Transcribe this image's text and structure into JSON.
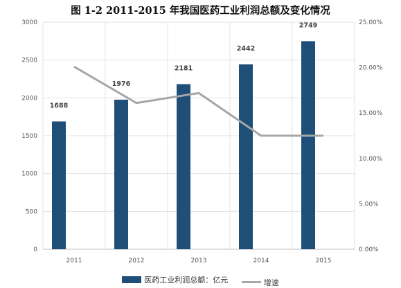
{
  "title": "图 1-2 2011-2015 年我国医药工业利润总额及变化情况",
  "chart_data": {
    "type": "bar",
    "categories": [
      "2011",
      "2012",
      "2013",
      "2014",
      "2015"
    ],
    "series": [
      {
        "name": "医药工业利润总额：亿元",
        "type": "bar",
        "axis": "left",
        "color": "#1f4e79",
        "values": [
          1688,
          1976,
          2181,
          2442,
          2749
        ]
      },
      {
        "name": "增速",
        "type": "line",
        "axis": "right",
        "color": "#a6a6a6",
        "values": [
          0.201,
          0.161,
          0.172,
          0.125,
          0.125
        ]
      }
    ],
    "y_left": {
      "lim": [
        0,
        3000
      ],
      "ticks": [
        "0",
        "500",
        "1000",
        "1500",
        "2000",
        "2500",
        "3000"
      ]
    },
    "y_right": {
      "lim": [
        0,
        0.25
      ],
      "ticks": [
        "0.00%",
        "5.00%",
        "10.00%",
        "15.00%",
        "20.00%",
        "25.00%"
      ]
    },
    "grid": true,
    "legend_position": "bottom"
  }
}
